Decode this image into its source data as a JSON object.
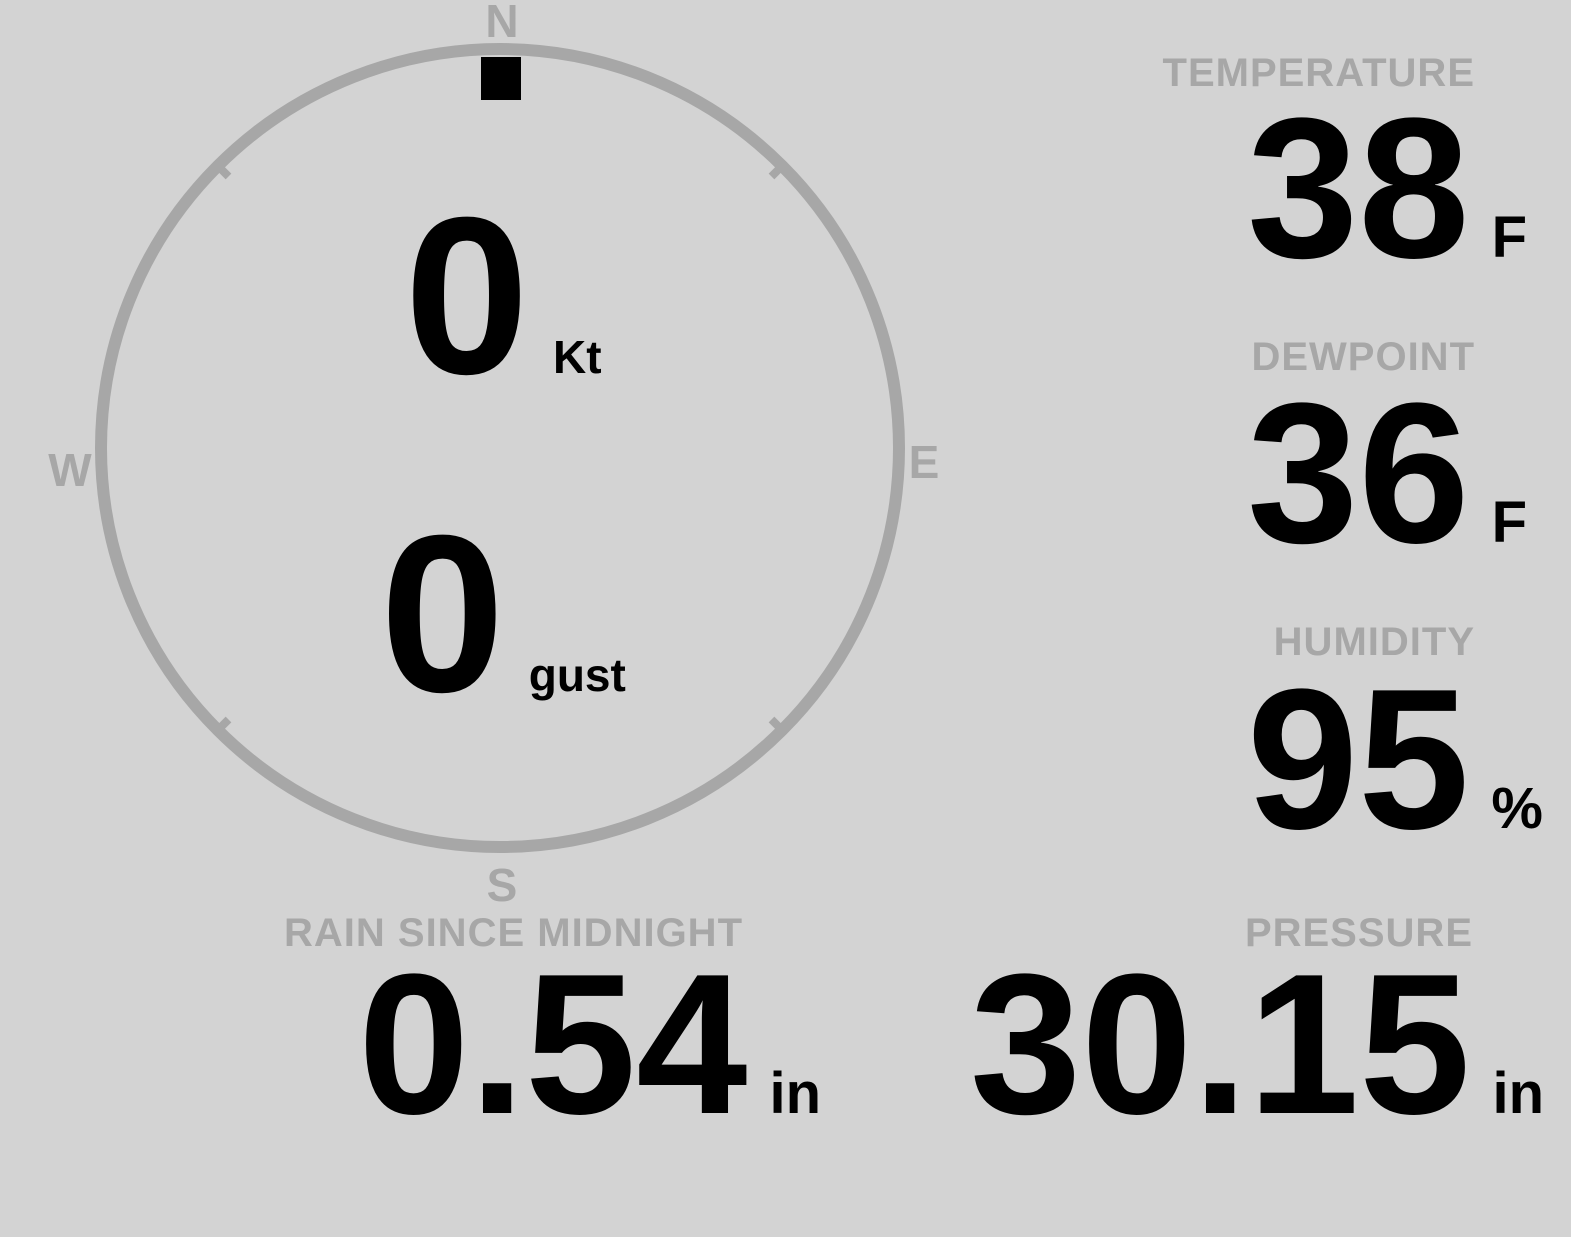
{
  "colors": {
    "background": "#d3d3d3",
    "muted": "#a7a7a7",
    "ink": "#000000"
  },
  "compass": {
    "cardinals": {
      "north": "N",
      "east": "E",
      "south": "S",
      "west": "W"
    },
    "wind_direction_deg": 0,
    "speed": {
      "value": "0",
      "unit": "Kt"
    },
    "gust": {
      "value": "0",
      "unit": "gust"
    }
  },
  "metrics": {
    "temperature": {
      "label": "TEMPERATURE",
      "value": "38",
      "unit": "F"
    },
    "dewpoint": {
      "label": "DEWPOINT",
      "value": "36",
      "unit": "F"
    },
    "humidity": {
      "label": "HUMIDITY",
      "value": "95",
      "unit": "%"
    },
    "rain_since_midnight": {
      "label": "RAIN SINCE MIDNIGHT",
      "value": "0.54",
      "unit": "in"
    },
    "pressure": {
      "label": "PRESSURE",
      "value": "30.15",
      "unit": "in"
    }
  }
}
